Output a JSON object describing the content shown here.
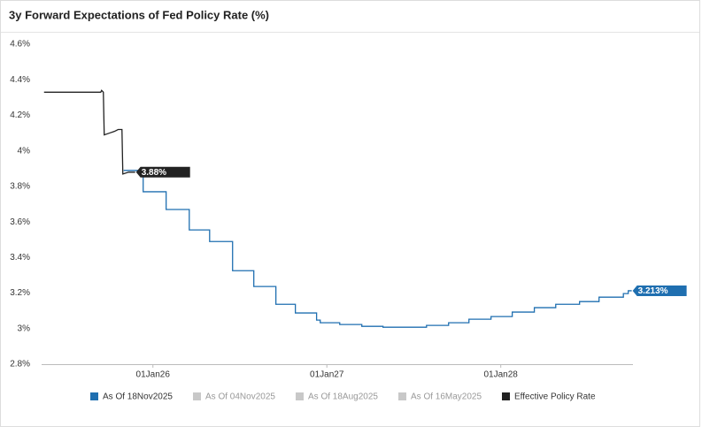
{
  "chart_data": {
    "type": "line",
    "step": "post",
    "title": "3y Forward Expectations of Fed Policy Rate (%)",
    "xlim": [
      2025.36,
      2028.76
    ],
    "xticks": [
      {
        "value": 2026,
        "label": "01Jan26"
      },
      {
        "value": 2027,
        "label": "01Jan27"
      },
      {
        "value": 2028,
        "label": "01Jan28"
      }
    ],
    "ylim": [
      2.8,
      4.6
    ],
    "yticks": [
      {
        "value": 2.8,
        "label": "2.8%"
      },
      {
        "value": 3,
        "label": "3%"
      },
      {
        "value": 3.2,
        "label": "3.2%"
      },
      {
        "value": 3.4,
        "label": "3.4%"
      },
      {
        "value": 3.6,
        "label": "3.6%"
      },
      {
        "value": 3.8,
        "label": "3.8%"
      },
      {
        "value": 4,
        "label": "4%"
      },
      {
        "value": 4.2,
        "label": "4.2%"
      },
      {
        "value": 4.4,
        "label": "4.4%"
      },
      {
        "value": 4.6,
        "label": "4.6%"
      }
    ],
    "series": [
      {
        "name": "As Of 18Nov2025",
        "color": "#1f6fb0",
        "step": true,
        "end_label": "3.213%",
        "x": [
          2025.832,
          2025.944,
          2026.076,
          2026.209,
          2026.326,
          2026.458,
          2026.58,
          2026.707,
          2026.819,
          2026.941,
          2026.962,
          2027.074,
          2027.201,
          2027.323,
          2027.45,
          2027.573,
          2027.7,
          2027.817,
          2027.944,
          2028.066,
          2028.193,
          2028.316,
          2028.453,
          2028.565,
          2028.705,
          2028.733,
          2028.753
        ],
        "values": [
          3.89,
          3.77,
          3.67,
          3.555,
          3.49,
          3.326,
          3.237,
          3.137,
          3.088,
          3.048,
          3.033,
          3.023,
          3.013,
          3.008,
          3.008,
          3.018,
          3.033,
          3.053,
          3.068,
          3.093,
          3.118,
          3.137,
          3.152,
          3.177,
          3.197,
          3.213,
          3.213
        ]
      },
      {
        "name": "Effective Policy Rate",
        "color": "#222222",
        "step": false,
        "end_label": "3.88%",
        "x": [
          2025.374,
          2025.7,
          2025.705,
          2025.715,
          2025.72,
          2025.75,
          2025.78,
          2025.8,
          2025.822,
          2025.827,
          2025.86,
          2025.898
        ],
        "values": [
          4.33,
          4.33,
          4.34,
          4.33,
          4.09,
          4.1,
          4.11,
          4.12,
          4.12,
          3.87,
          3.88,
          3.88
        ]
      }
    ],
    "hidden_series": [
      "As Of 04Nov2025",
      "As Of 18Aug2025",
      "As Of 16May2025"
    ],
    "hidden_color": "#c8c8c8",
    "legend_order": [
      "s0",
      "h0",
      "h1",
      "h2",
      "s1"
    ]
  }
}
